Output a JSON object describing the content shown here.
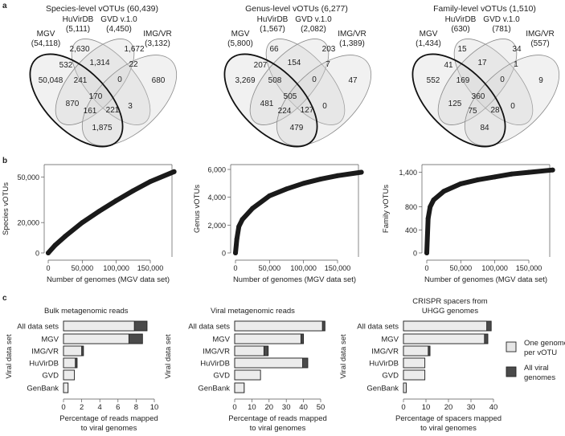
{
  "panel_letters": [
    "a",
    "b",
    "c"
  ],
  "chart_data": [
    {
      "type": "venn",
      "title": "Species-level vOTUs (60,439)",
      "sets": [
        {
          "name": "MGV",
          "total": "(54,118)"
        },
        {
          "name": "HuVirDB",
          "total": "(5,111)"
        },
        {
          "name": "GVD v.1.0",
          "total": "(4,450)"
        },
        {
          "name": "IMG/VR",
          "total": "(3,132)"
        }
      ],
      "regions": [
        "50,048",
        "2,630",
        "1,672",
        "680",
        "532",
        "1,314",
        "22",
        "241",
        "0",
        "170",
        "870",
        "161",
        "221",
        "3",
        "1,875"
      ]
    },
    {
      "type": "venn",
      "title": "Genus-level vOTUs (6,277)",
      "sets": [
        {
          "name": "MGV",
          "total": "(5,800)"
        },
        {
          "name": "HuVirDB",
          "total": "(1,567)"
        },
        {
          "name": "GVD v.1.0",
          "total": "(2,082)"
        },
        {
          "name": "IMG/VR",
          "total": "(1,389)"
        }
      ],
      "regions": [
        "3,269",
        "66",
        "203",
        "47",
        "207",
        "154",
        "7",
        "508",
        "0",
        "505",
        "481",
        "224",
        "127",
        "0",
        "479"
      ]
    },
    {
      "type": "venn",
      "title": "Family-level vOTUs (1,510)",
      "sets": [
        {
          "name": "MGV",
          "total": "(1,434)"
        },
        {
          "name": "HuVirDB",
          "total": "(630)"
        },
        {
          "name": "GVD v.1.0",
          "total": "(781)"
        },
        {
          "name": "IMG/VR",
          "total": "(557)"
        }
      ],
      "regions": [
        "552",
        "15",
        "34",
        "9",
        "41",
        "17",
        "1",
        "169",
        "0",
        "360",
        "125",
        "75",
        "28",
        "0",
        "84"
      ]
    },
    {
      "type": "line",
      "xlabel": "Number of genomes (MGV data set)",
      "ylabel": "Species vOTUs",
      "xticks": [
        {
          "v": 0,
          "label": "0"
        },
        {
          "v": 50000,
          "label": "50,000"
        },
        {
          "v": 100000,
          "label": "100,000"
        },
        {
          "v": 150000,
          "label": "150,000"
        }
      ],
      "yticks": [
        {
          "v": 0,
          "label": "0"
        },
        {
          "v": 20000,
          "label": "20,000"
        },
        {
          "v": 50000,
          "label": "50,000"
        }
      ],
      "ylim": [
        0,
        55000
      ],
      "x": [
        0,
        10000,
        25000,
        50000,
        75000,
        100000,
        125000,
        150000,
        185000
      ],
      "y": [
        0,
        5000,
        11000,
        20000,
        27500,
        34500,
        41000,
        47000,
        53500
      ]
    },
    {
      "type": "line",
      "xlabel": "Number of genomes (MGV data set)",
      "ylabel": "Genus vOTUs",
      "xticks": [
        {
          "v": 0,
          "label": "0"
        },
        {
          "v": 50000,
          "label": "50,000"
        },
        {
          "v": 100000,
          "label": "100,000"
        },
        {
          "v": 150000,
          "label": "150,000"
        }
      ],
      "yticks": [
        {
          "v": 0,
          "label": "0"
        },
        {
          "v": 2000,
          "label": "2,000"
        },
        {
          "v": 4000,
          "label": "4,000"
        },
        {
          "v": 6000,
          "label": "6,000"
        }
      ],
      "ylim": [
        0,
        6000
      ],
      "x": [
        0,
        2000,
        5000,
        10000,
        25000,
        50000,
        75000,
        100000,
        125000,
        150000,
        185000
      ],
      "y": [
        0,
        1000,
        1900,
        2400,
        3200,
        4100,
        4600,
        5000,
        5300,
        5550,
        5800
      ]
    },
    {
      "type": "line",
      "xlabel": "Number of genomes (MGV data set)",
      "ylabel": "Family vOTUs",
      "xticks": [
        {
          "v": 0,
          "label": "0"
        },
        {
          "v": 50000,
          "label": "50,000"
        },
        {
          "v": 100000,
          "label": "100,000"
        },
        {
          "v": 150000,
          "label": "150,000"
        }
      ],
      "yticks": [
        {
          "v": 0,
          "label": "0"
        },
        {
          "v": 400,
          "label": "400"
        },
        {
          "v": 800,
          "label": "800"
        },
        {
          "v": 1400,
          "label": "1,400"
        }
      ],
      "ylim": [
        0,
        1450
      ],
      "x": [
        0,
        2000,
        5000,
        10000,
        25000,
        50000,
        75000,
        100000,
        125000,
        150000,
        185000
      ],
      "y": [
        0,
        600,
        800,
        920,
        1070,
        1200,
        1270,
        1320,
        1370,
        1400,
        1440
      ]
    },
    {
      "type": "bar",
      "title": [
        "Bulk metagenomic reads"
      ],
      "ylabel": "Viral data set",
      "xlabel": [
        "Percentage of reads mapped",
        "to viral genomes"
      ],
      "categories": [
        "All data sets",
        "MGV",
        "IMG/VR",
        "HuVirDB",
        "GVD",
        "GenBank"
      ],
      "xticks": [
        "0",
        "2",
        "4",
        "6",
        "8",
        "10"
      ],
      "xlim": [
        0,
        10
      ],
      "series": [
        {
          "name": "One genome per vOTU",
          "values": [
            7.8,
            7.2,
            2.0,
            1.3,
            1.2,
            0.5
          ]
        },
        {
          "name": "All viral genomes",
          "values": [
            9.2,
            8.7,
            2.2,
            1.5,
            1.2,
            0.5
          ]
        }
      ]
    },
    {
      "type": "bar",
      "title": [
        "Viral metagenomic reads"
      ],
      "ylabel": "Viral data set",
      "xlabel": [
        "Percentage of reads mapped",
        "to viral genomes"
      ],
      "categories": [
        "All data sets",
        "MGV",
        "IMG/VR",
        "HuVirDB",
        "GVD",
        "GenBank"
      ],
      "xticks": [
        "0",
        "10",
        "20",
        "30",
        "40",
        "50"
      ],
      "xlim": [
        0,
        50
      ],
      "series": [
        {
          "name": "One genome per vOTU",
          "values": [
            51,
            38.5,
            17,
            39.5,
            15,
            5.5
          ]
        },
        {
          "name": "All viral genomes",
          "values": [
            52.5,
            40,
            19.5,
            42.5,
            15,
            5.5
          ]
        }
      ]
    },
    {
      "type": "bar",
      "title": [
        "CRISPR spacers from",
        "UHGG genomes"
      ],
      "ylabel": "Viral data set",
      "xlabel": [
        "Percentage of spacers mapped",
        "to viral genomes"
      ],
      "categories": [
        "All data sets",
        "MGV",
        "IMG/VR",
        "HuVirDB",
        "GVD",
        "GenBank"
      ],
      "xticks": [
        "0",
        "10",
        "20",
        "30",
        "40"
      ],
      "xlim": [
        0,
        40
      ],
      "series": [
        {
          "name": "One genome per vOTU",
          "values": [
            37,
            36,
            11,
            9.5,
            9.5,
            1.2
          ]
        },
        {
          "name": "All viral genomes",
          "values": [
            39,
            37.5,
            11.8,
            9.5,
            9.5,
            1.2
          ]
        }
      ]
    }
  ],
  "legend": {
    "items": [
      {
        "lines": [
          "One genome",
          "per vOTU"
        ],
        "color": "#e6e6e6"
      },
      {
        "lines": [
          "All  viral",
          "genomes"
        ],
        "color": "#4a4a4a"
      }
    ]
  },
  "colors": {
    "venn_fill": "#d4d4d4",
    "venn_stroke": "#8a8a8a",
    "mgv_stroke": "#111111",
    "curve": "#1a1a1a",
    "bar_light": "#ececec",
    "bar_dark": "#4a4a4a"
  }
}
